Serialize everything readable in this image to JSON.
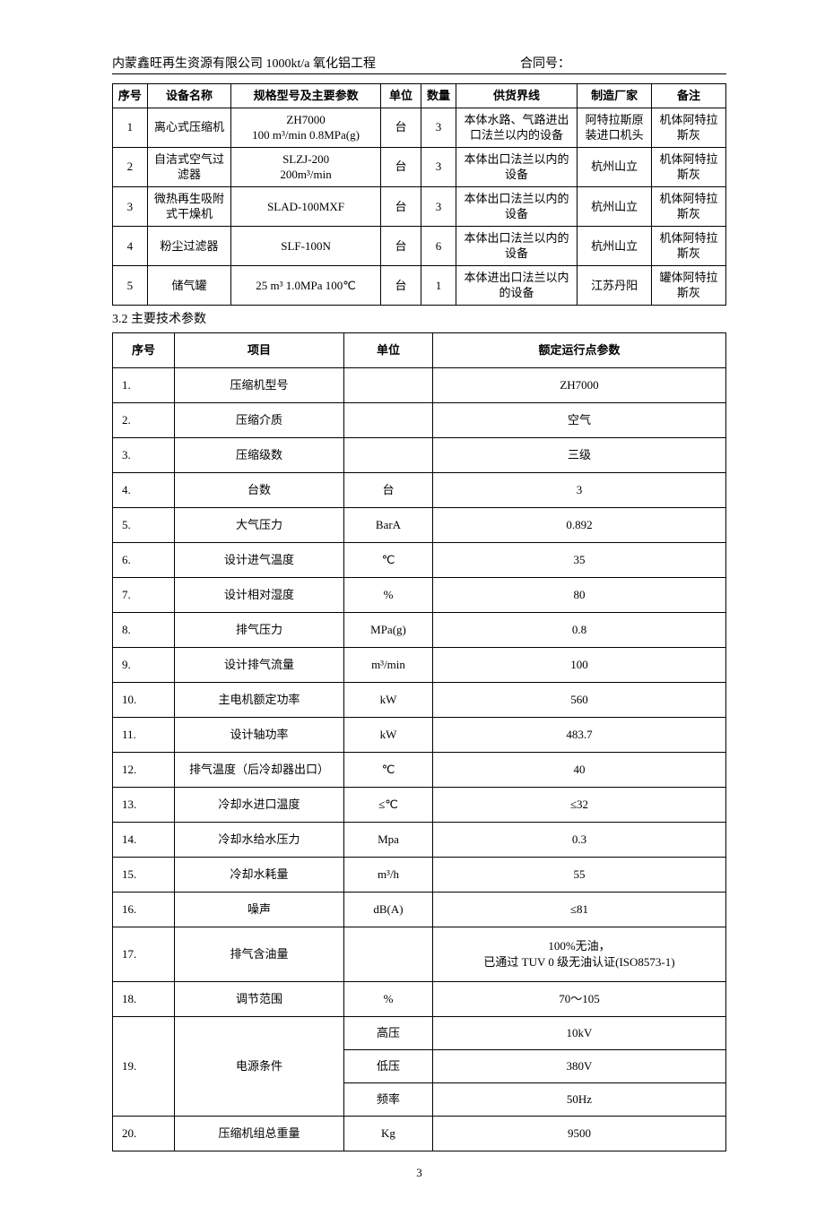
{
  "header": {
    "left": "内蒙鑫旺再生资源有限公司 1000kt/a 氧化铝工程",
    "right_label": "合同号：",
    "right_value": ""
  },
  "table1": {
    "headers": [
      "序号",
      "设备名称",
      "规格型号及主要参数",
      "单位",
      "数量",
      "供货界线",
      "制造厂家",
      "备注"
    ],
    "rows": [
      {
        "seq": "1",
        "name": "离心式压缩机",
        "spec": "ZH7000\n100 m³/min 0.8MPa(g)",
        "unit": "台",
        "qty": "3",
        "scope": "本体水路、气路进出口法兰以内的设备",
        "maker": "阿特拉斯原装进口机头",
        "note": "机体阿特拉斯灰"
      },
      {
        "seq": "2",
        "name": "自洁式空气过滤器",
        "spec": "SLZJ-200\n200m³/min",
        "unit": "台",
        "qty": "3",
        "scope": "本体出口法兰以内的设备",
        "maker": "杭州山立",
        "note": "机体阿特拉斯灰"
      },
      {
        "seq": "3",
        "name": "微热再生吸附式干燥机",
        "spec": "SLAD-100MXF",
        "unit": "台",
        "qty": "3",
        "scope": "本体出口法兰以内的设备",
        "maker": "杭州山立",
        "note": "机体阿特拉斯灰"
      },
      {
        "seq": "4",
        "name": "粉尘过滤器",
        "spec": "SLF-100N",
        "unit": "台",
        "qty": "6",
        "scope": "本体出口法兰以内的设备",
        "maker": "杭州山立",
        "note": "机体阿特拉斯灰"
      },
      {
        "seq": "5",
        "name": "储气罐",
        "spec": "25 m³ 1.0MPa  100℃",
        "unit": "台",
        "qty": "1",
        "scope": "本体进出口法兰以内的设备",
        "maker": "江苏丹阳",
        "note": "罐体阿特拉斯灰"
      }
    ]
  },
  "section_3_2": "3.2 主要技术参数",
  "table2": {
    "headers": [
      "序号",
      "项目",
      "单位",
      "额定运行点参数"
    ],
    "rows": [
      {
        "n": "1.",
        "item": "压缩机型号",
        "unit": "",
        "val": "ZH7000"
      },
      {
        "n": "2.",
        "item": "压缩介质",
        "unit": "",
        "val": "空气"
      },
      {
        "n": "3.",
        "item": "压缩级数",
        "unit": "",
        "val": "三级"
      },
      {
        "n": "4.",
        "item": "台数",
        "unit": "台",
        "val": "3"
      },
      {
        "n": "5.",
        "item": "大气压力",
        "unit": "BarA",
        "val": "0.892"
      },
      {
        "n": "6.",
        "item": "设计进气温度",
        "unit": "℃",
        "val": "35"
      },
      {
        "n": "7.",
        "item": "设计相对湿度",
        "unit": "%",
        "val": "80"
      },
      {
        "n": "8.",
        "item": "排气压力",
        "unit": "MPa(g)",
        "val": "0.8"
      },
      {
        "n": "9.",
        "item": "设计排气流量",
        "unit": "m³/min",
        "val": "100"
      },
      {
        "n": "10.",
        "item": "主电机额定功率",
        "unit": "kW",
        "val": "560"
      },
      {
        "n": "11.",
        "item": "设计轴功率",
        "unit": "kW",
        "val": "483.7"
      },
      {
        "n": "12.",
        "item": "排气温度（后冷却器出口）",
        "unit": "℃",
        "val": "40"
      },
      {
        "n": "13.",
        "item": "冷却水进口温度",
        "unit": "≤℃",
        "val": "≤32"
      },
      {
        "n": "14.",
        "item": "冷却水给水压力",
        "unit": "Mpa",
        "val": "0.3"
      },
      {
        "n": "15.",
        "item": "冷却水耗量",
        "unit": "m³/h",
        "val": "55"
      },
      {
        "n": "16.",
        "item": "噪声",
        "unit": "dB(A)",
        "val": "≤81"
      },
      {
        "n": "17.",
        "item": "排气含油量",
        "unit": "",
        "val": "100%无油，\n已通过 TUV 0 级无油认证(ISO8573-1)"
      },
      {
        "n": "18.",
        "item": "调节范围",
        "unit": "%",
        "val": "70～105"
      }
    ],
    "row19": {
      "n": "19.",
      "item": "电源条件",
      "sub": [
        {
          "unit": "高压",
          "val": "10kV"
        },
        {
          "unit": "低压",
          "val": "380V"
        },
        {
          "unit": "频率",
          "val": "50Hz"
        }
      ]
    },
    "row20": {
      "n": "20.",
      "item": "压缩机组总重量",
      "unit": "Kg",
      "val": "9500"
    }
  },
  "page_number": "3"
}
